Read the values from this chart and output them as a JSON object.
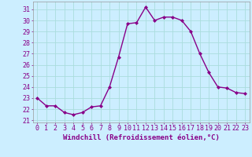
{
  "hours": [
    0,
    1,
    2,
    3,
    4,
    5,
    6,
    7,
    8,
    9,
    10,
    11,
    12,
    13,
    14,
    15,
    16,
    17,
    18,
    19,
    20,
    21,
    22,
    23
  ],
  "values": [
    23.0,
    22.3,
    22.3,
    21.7,
    21.5,
    21.7,
    22.2,
    22.3,
    24.0,
    26.7,
    29.7,
    29.8,
    31.2,
    30.0,
    30.3,
    30.3,
    30.0,
    29.0,
    27.0,
    25.3,
    24.0,
    23.9,
    23.5,
    23.4
  ],
  "line_color": "#880088",
  "marker": "D",
  "marker_size": 2.0,
  "bg_color": "#cceeff",
  "grid_color": "#aadddd",
  "xlabel": "Windchill (Refroidissement éolien,°C)",
  "ylabel_ticks": [
    21,
    22,
    23,
    24,
    25,
    26,
    27,
    28,
    29,
    30,
    31
  ],
  "xlim": [
    -0.5,
    23.5
  ],
  "ylim": [
    20.8,
    31.7
  ],
  "tick_label_color": "#880088",
  "xlabel_color": "#880088",
  "xlabel_fontsize": 6.5,
  "tick_fontsize": 6.0,
  "line_width": 1.0
}
